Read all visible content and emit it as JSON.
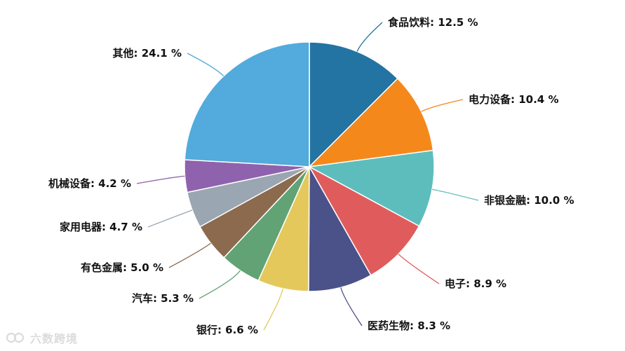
{
  "chart_data": {
    "type": "pie",
    "title": "",
    "unit": "%",
    "slices": [
      {
        "label": "食品饮料",
        "value": 12.5,
        "color": "#2374a2",
        "display": "食品饮料: 12.5 %"
      },
      {
        "label": "电力设备",
        "value": 10.4,
        "color": "#f5881b",
        "display": "电力设备: 10.4 %"
      },
      {
        "label": "非银金融",
        "value": 10.0,
        "color": "#5dbdbd",
        "display": "非银金融: 10.0 %"
      },
      {
        "label": "电子",
        "value": 8.9,
        "color": "#e05c5c",
        "display": "电子: 8.9 %"
      },
      {
        "label": "医药生物",
        "value": 8.3,
        "color": "#4b5289",
        "display": "医药生物: 8.3 %"
      },
      {
        "label": "银行",
        "value": 6.6,
        "color": "#e5c85c",
        "display": "银行: 6.6 %"
      },
      {
        "label": "汽车",
        "value": 5.3,
        "color": "#61a374",
        "display": "汽车: 5.3 %"
      },
      {
        "label": "有色金属",
        "value": 5.0,
        "color": "#8b6a4e",
        "display": "有色金属: 5.0 %"
      },
      {
        "label": "家用电器",
        "value": 4.7,
        "color": "#9aa6b2",
        "display": "家用电器: 4.7 %"
      },
      {
        "label": "机械设备",
        "value": 4.2,
        "color": "#8f62ad",
        "display": "机械设备: 4.2 %"
      },
      {
        "label": "其他",
        "value": 24.1,
        "color": "#52abdc",
        "display": "其他: 24.1 %"
      }
    ]
  },
  "watermark": {
    "text": "六数跨境",
    "color": "#9a9a9a"
  }
}
